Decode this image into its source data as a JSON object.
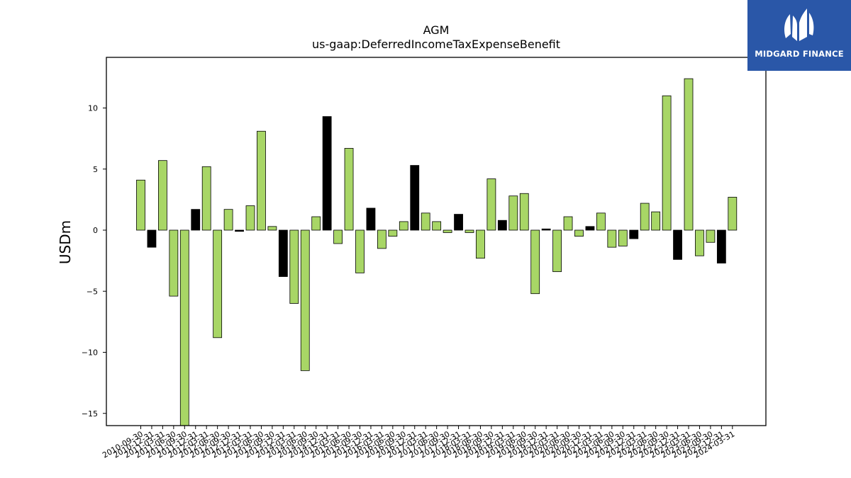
{
  "brand": {
    "name": "MIDGARD FINANCE",
    "color": "#2a57a8"
  },
  "chart_data": {
    "type": "bar",
    "title": "AGM",
    "subtitle": "us-gaap:DeferredIncomeTaxExpenseBenefit",
    "xlabel": "",
    "ylabel": "USDm",
    "ylim": [
      -16,
      14
    ],
    "yticks": [
      -15,
      -10,
      -5,
      0,
      5,
      10
    ],
    "grid": false,
    "colors": {
      "default": "#a8d666",
      "highlight": "#000000"
    },
    "categories": [
      "2010-09-30",
      "2010-12-31",
      "2011-03-31",
      "2011-06-30",
      "2011-09-30",
      "2011-12-31",
      "2012-03-31",
      "2012-06-30",
      "2012-09-30",
      "2012-12-31",
      "2013-03-31",
      "2013-06-30",
      "2013-09-30",
      "2013-12-31",
      "2014-03-31",
      "2014-06-30",
      "2014-09-30",
      "2014-12-31",
      "2015-03-31",
      "2015-06-30",
      "2015-09-30",
      "2015-12-31",
      "2016-03-31",
      "2016-06-30",
      "2016-09-30",
      "2016-12-31",
      "2017-03-31",
      "2017-06-30",
      "2017-09-30",
      "2017-12-31",
      "2018-03-31",
      "2018-06-30",
      "2018-09-30",
      "2018-12-31",
      "2019-03-31",
      "2019-06-30",
      "2019-09-30",
      "2019-12-31",
      "2020-03-31",
      "2020-06-30",
      "2020-09-30",
      "2020-12-31",
      "2021-03-31",
      "2021-06-30",
      "2021-09-30",
      "2021-12-31",
      "2022-03-31",
      "2022-06-30",
      "2022-09-30",
      "2022-12-31",
      "2023-03-31",
      "2023-06-30",
      "2023-09-30",
      "2023-12-31",
      "2024-03-31"
    ],
    "values": [
      4.1,
      -1.4,
      5.7,
      -5.4,
      -16.1,
      1.7,
      5.2,
      -8.8,
      1.7,
      -0.1,
      2.0,
      8.1,
      0.3,
      -3.8,
      -6.0,
      -11.5,
      1.1,
      9.3,
      -1.1,
      6.7,
      -3.5,
      1.8,
      -1.5,
      -0.5,
      0.7,
      5.3,
      1.4,
      0.7,
      -0.2,
      1.3,
      -0.2,
      -2.3,
      4.2,
      0.8,
      2.8,
      3.0,
      -5.2,
      0.1,
      -3.4,
      1.1,
      -0.5,
      0.3,
      1.4,
      -1.4,
      -1.3,
      -0.7,
      2.2,
      1.5,
      11.0,
      -2.4,
      12.4,
      -2.1,
      -1.0,
      -2.7,
      2.7
    ],
    "highlight": [
      false,
      true,
      false,
      false,
      false,
      true,
      false,
      false,
      false,
      true,
      false,
      false,
      false,
      true,
      false,
      false,
      false,
      true,
      false,
      false,
      false,
      true,
      false,
      false,
      false,
      true,
      false,
      false,
      false,
      true,
      false,
      false,
      false,
      true,
      false,
      false,
      false,
      true,
      false,
      false,
      false,
      true,
      false,
      false,
      false,
      true,
      false,
      false,
      false,
      true,
      false,
      false,
      false,
      true,
      false
    ]
  }
}
